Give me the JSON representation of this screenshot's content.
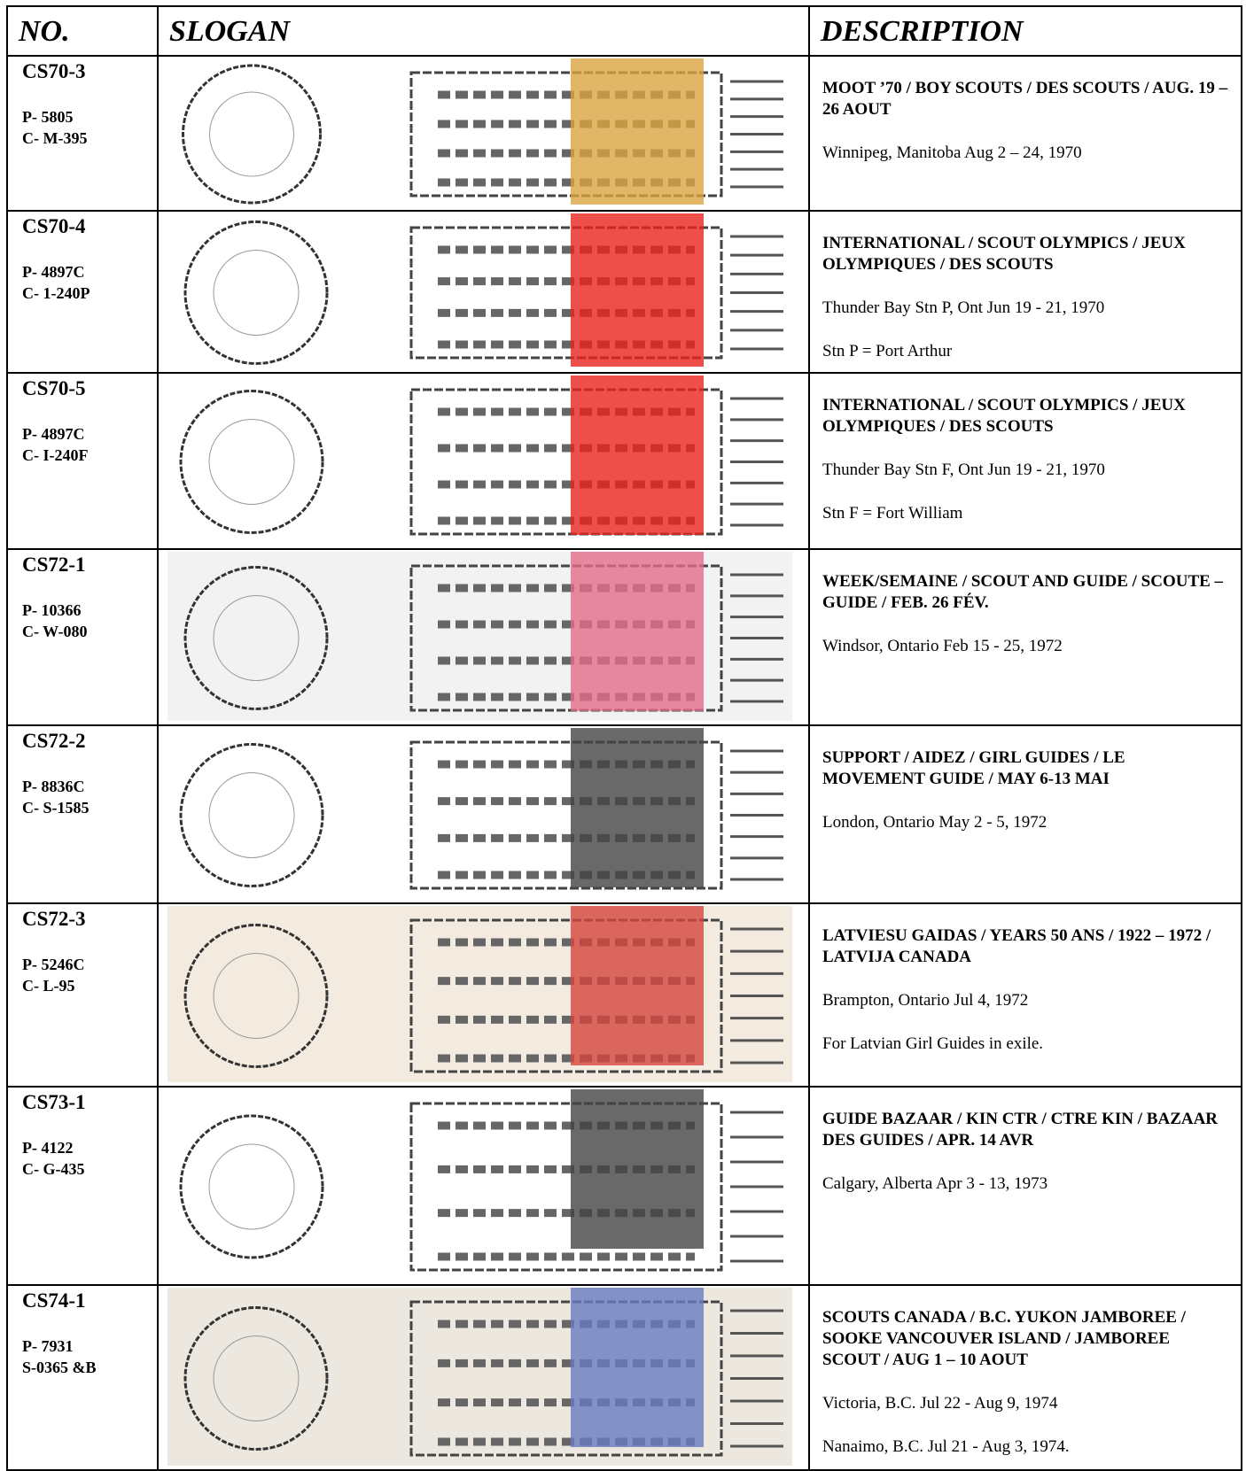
{
  "table": {
    "header": [
      "NO.",
      "SLOGAN",
      "DESCRIPTION"
    ],
    "rows": [
      {
        "id": "CS70-3",
        "codes": [
          "P- 5805",
          "C- M-395"
        ],
        "description": [
          "MOOT ’70 / BOY SCOUTS / DES SCOUTS / AUG. 19 – 26 AOUT",
          "Winnipeg, Manitoba  Aug 2 – 24, 1970"
        ]
      },
      {
        "id": "CS70-4",
        "codes": [
          "P- 4897C",
          "C- 1-240P"
        ],
        "description": [
          "INTERNATIONAL / SCOUT OLYMPICS / JEUX OLYMPIQUES / DES SCOUTS",
          "Thunder Bay Stn P, Ont  Jun 19 - 21, 1970",
          "Stn P = Port Arthur"
        ]
      },
      {
        "id": "CS70-5",
        "codes": [
          "P- 4897C",
          "C- I-240F"
        ],
        "description": [
          "INTERNATIONAL / SCOUT OLYMPICS / JEUX OLYMPIQUES / DES SCOUTS",
          "Thunder Bay Stn F, Ont  Jun 19 - 21, 1970",
          "Stn F = Fort William"
        ]
      },
      {
        "id": "CS72-1",
        "codes": [
          "P- 10366",
          "C- W-080"
        ],
        "description": [
          "WEEK/SEMAINE / SCOUT AND GUIDE / SCOUTE – GUIDE / FEB. 26 FÉV.",
          "Windsor, Ontario  Feb 15 - 25, 1972"
        ]
      },
      {
        "id": "CS72-2",
        "codes": [
          "P- 8836C",
          "C- S-1585"
        ],
        "description": [
          "SUPPORT / AIDEZ / GIRL GUIDES / LE MOVEMENT GUIDE / MAY 6-13 MAI",
          "London, Ontario  May  2 - 5, 1972"
        ]
      },
      {
        "id": "CS72-3",
        "codes": [
          "P- 5246C",
          "C- L-95"
        ],
        "description": [
          "LATVIESU GAIDAS / YEARS 50 ANS / 1922 – 1972 / LATVIJA CANADA",
          "Brampton, Ontario  Jul 4, 1972",
          "For Latvian Girl Guides in exile."
        ]
      },
      {
        "id": "CS73-1",
        "codes": [
          "P- 4122",
          "C- G-435"
        ],
        "description": [
          "GUIDE BAZAAR / KIN CTR / CTRE KIN / BAZAAR DES GUIDES / APR. 14 AVR",
          "Calgary, Alberta  Apr 3 - 13, 1973"
        ]
      },
      {
        "id": "CS74-1",
        "codes": [
          "P- 7931",
          "S-0365 &B"
        ],
        "description": [
          "SCOUTS CANADA / B.C. YUKON JAMBOREE / SOOKE VANCOUVER ISLAND / JAMBOREE SCOUT / AUG 1 – 10 AOUT",
          "Victoria, B.C.   Jul 22 - Aug 9, 1974",
          "Nanaimo, B.C.  Jul 21 - Aug 3, 1974."
        ]
      }
    ]
  }
}
